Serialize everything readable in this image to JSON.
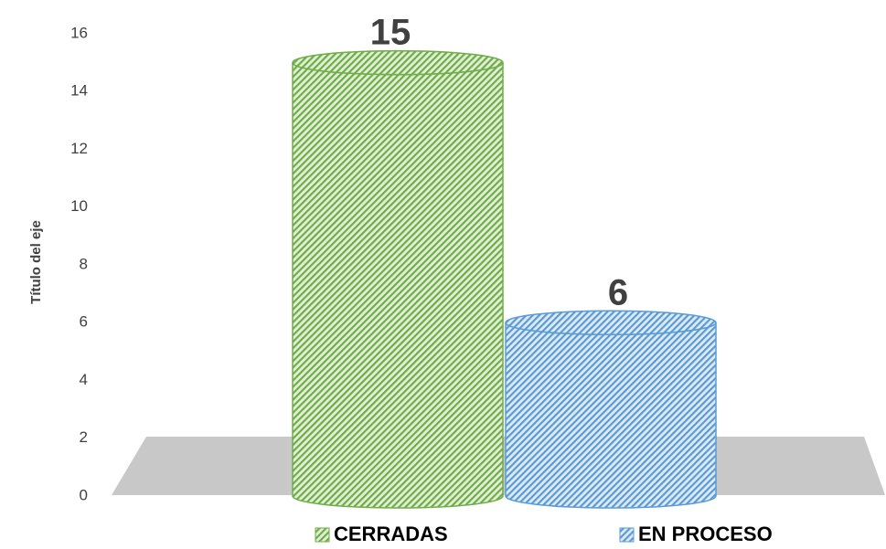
{
  "chart_data": {
    "type": "bar",
    "style": "3d-cylinder",
    "categories": [
      "CERRADAS",
      "EN PROCESO"
    ],
    "values": [
      15,
      6
    ],
    "data_labels": [
      "15",
      "6"
    ],
    "ylabel": "Título del eje",
    "ylim": [
      0,
      16
    ],
    "yticks": [
      "0",
      "2",
      "4",
      "6",
      "8",
      "10",
      "12",
      "14",
      "16"
    ],
    "grid": false,
    "legend_position": "bottom",
    "colors": {
      "CERRADAS": {
        "stripe": "#70AD47",
        "light": "#E2F0D9",
        "edge": "#70AD47"
      },
      "EN PROCESO": {
        "stripe": "#5B9BD5",
        "light": "#DEEBF7",
        "edge": "#5B9BD5"
      },
      "floor": "#C8C8C8",
      "text": "#404040"
    }
  }
}
